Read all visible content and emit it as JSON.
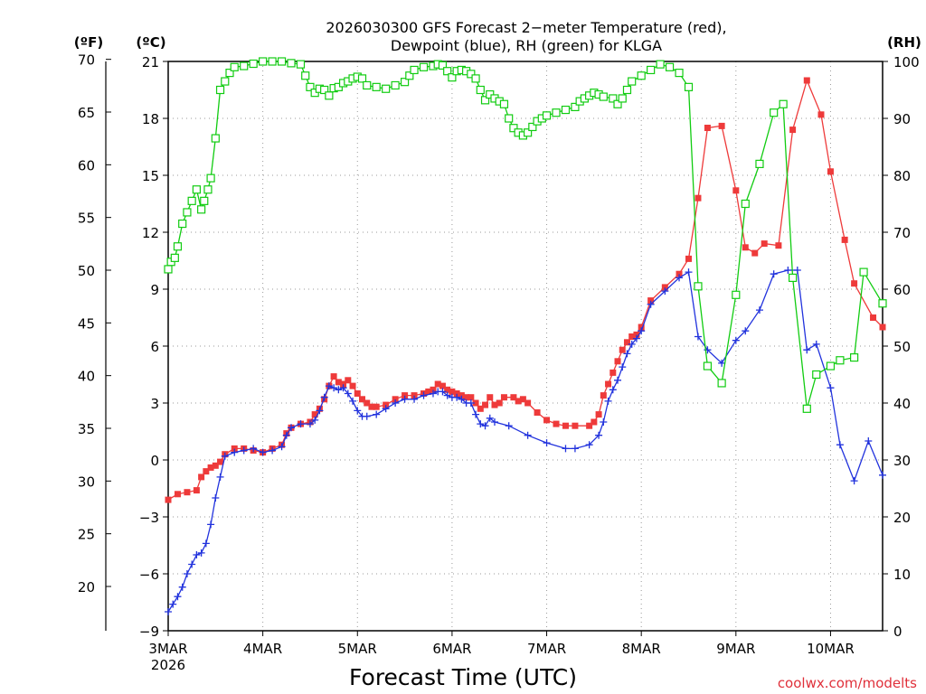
{
  "chart_data": {
    "type": "line",
    "title_line1": "2026030300 GFS Forecast 2−meter Temperature (red),",
    "title_line2": "Dewpoint (blue), RH (green) for KLGA",
    "xlabel": "Forecast Time (UTC)",
    "credit": "coolwx.com/modelts",
    "y_left_outer_unit": "(ºF)",
    "y_left_inner_unit": "(ºC)",
    "y_right_unit": "(RH)",
    "x_range_days": [
      0,
      7.55
    ],
    "yC_range": [
      -9,
      21
    ],
    "yF_range": [
      15.8,
      69.8
    ],
    "rh_range": [
      0,
      100
    ],
    "f_ticks": [
      "70",
      "65",
      "60",
      "55",
      "50",
      "45",
      "40",
      "35",
      "30",
      "25",
      "20"
    ],
    "c_ticks": [
      "21",
      "18",
      "15",
      "12",
      "9",
      "6",
      "3",
      "0",
      "−3",
      "−6",
      "−9"
    ],
    "rh_ticks": [
      "100",
      "90",
      "80",
      "70",
      "60",
      "50",
      "40",
      "30",
      "20",
      "10",
      "0"
    ],
    "x_ticks": [
      {
        "day": 0,
        "label": "3MAR",
        "sublabel": "2026"
      },
      {
        "day": 1,
        "label": "4MAR",
        "sublabel": ""
      },
      {
        "day": 2,
        "label": "5MAR",
        "sublabel": ""
      },
      {
        "day": 3,
        "label": "6MAR",
        "sublabel": ""
      },
      {
        "day": 4,
        "label": "7MAR",
        "sublabel": ""
      },
      {
        "day": 5,
        "label": "8MAR",
        "sublabel": ""
      },
      {
        "day": 6,
        "label": "9MAR",
        "sublabel": ""
      },
      {
        "day": 7,
        "label": "10MAR",
        "sublabel": ""
      }
    ],
    "colors": {
      "temperature": "#ee3a3a",
      "dewpoint": "#2233dd",
      "rh": "#11cc11"
    },
    "series": [
      {
        "name": "Temperature",
        "units": "degC",
        "marker": "square",
        "color": "#ee3a3a",
        "points": [
          [
            0,
            -2.1
          ],
          [
            0.1,
            -1.8
          ],
          [
            0.2,
            -1.7
          ],
          [
            0.3,
            -1.6
          ],
          [
            0.35,
            -0.9
          ],
          [
            0.4,
            -0.6
          ],
          [
            0.45,
            -0.4
          ],
          [
            0.5,
            -0.3
          ],
          [
            0.55,
            -0.1
          ],
          [
            0.6,
            0.3
          ],
          [
            0.7,
            0.6
          ],
          [
            0.8,
            0.6
          ],
          [
            0.9,
            0.5
          ],
          [
            1.0,
            0.4
          ],
          [
            1.1,
            0.6
          ],
          [
            1.2,
            0.8
          ],
          [
            1.25,
            1.4
          ],
          [
            1.3,
            1.7
          ],
          [
            1.4,
            1.9
          ],
          [
            1.5,
            2.0
          ],
          [
            1.55,
            2.4
          ],
          [
            1.6,
            2.7
          ],
          [
            1.65,
            3.2
          ],
          [
            1.7,
            3.9
          ],
          [
            1.75,
            4.4
          ],
          [
            1.8,
            4.1
          ],
          [
            1.85,
            4.0
          ],
          [
            1.9,
            4.2
          ],
          [
            1.95,
            3.9
          ],
          [
            2.0,
            3.5
          ],
          [
            2.05,
            3.2
          ],
          [
            2.1,
            3.0
          ],
          [
            2.15,
            2.8
          ],
          [
            2.2,
            2.8
          ],
          [
            2.3,
            2.9
          ],
          [
            2.4,
            3.2
          ],
          [
            2.5,
            3.4
          ],
          [
            2.6,
            3.4
          ],
          [
            2.7,
            3.5
          ],
          [
            2.75,
            3.6
          ],
          [
            2.8,
            3.7
          ],
          [
            2.85,
            4.0
          ],
          [
            2.9,
            3.9
          ],
          [
            2.95,
            3.7
          ],
          [
            3.0,
            3.6
          ],
          [
            3.05,
            3.5
          ],
          [
            3.1,
            3.4
          ],
          [
            3.15,
            3.3
          ],
          [
            3.2,
            3.3
          ],
          [
            3.25,
            3.0
          ],
          [
            3.3,
            2.7
          ],
          [
            3.35,
            2.9
          ],
          [
            3.4,
            3.3
          ],
          [
            3.45,
            2.9
          ],
          [
            3.5,
            3.0
          ],
          [
            3.55,
            3.3
          ],
          [
            3.65,
            3.3
          ],
          [
            3.7,
            3.1
          ],
          [
            3.75,
            3.2
          ],
          [
            3.8,
            3.0
          ],
          [
            3.9,
            2.5
          ],
          [
            4.0,
            2.1
          ],
          [
            4.1,
            1.9
          ],
          [
            4.2,
            1.8
          ],
          [
            4.3,
            1.8
          ],
          [
            4.45,
            1.8
          ],
          [
            4.5,
            2.0
          ],
          [
            4.55,
            2.4
          ],
          [
            4.6,
            3.4
          ],
          [
            4.65,
            4.0
          ],
          [
            4.7,
            4.6
          ],
          [
            4.75,
            5.2
          ],
          [
            4.8,
            5.8
          ],
          [
            4.85,
            6.2
          ],
          [
            4.9,
            6.5
          ],
          [
            4.95,
            6.6
          ],
          [
            5.0,
            7.0
          ],
          [
            5.1,
            8.4
          ],
          [
            5.25,
            9.1
          ],
          [
            5.4,
            9.8
          ],
          [
            5.5,
            10.6
          ],
          [
            5.6,
            13.8
          ],
          [
            5.7,
            17.5
          ],
          [
            5.85,
            17.6
          ],
          [
            6.0,
            14.2
          ],
          [
            6.1,
            11.2
          ],
          [
            6.2,
            10.9
          ],
          [
            6.3,
            11.4
          ],
          [
            6.45,
            11.3
          ],
          [
            6.6,
            17.4
          ],
          [
            6.75,
            20.0
          ],
          [
            6.9,
            18.2
          ],
          [
            7.0,
            15.2
          ],
          [
            7.15,
            11.6
          ],
          [
            7.25,
            9.3
          ],
          [
            7.45,
            7.5
          ],
          [
            7.55,
            7.0
          ]
        ]
      },
      {
        "name": "Dewpoint",
        "units": "degC",
        "marker": "plus",
        "color": "#2233dd",
        "points": [
          [
            0,
            -8.0
          ],
          [
            0.05,
            -7.6
          ],
          [
            0.1,
            -7.2
          ],
          [
            0.15,
            -6.7
          ],
          [
            0.2,
            -6.0
          ],
          [
            0.25,
            -5.5
          ],
          [
            0.3,
            -5.0
          ],
          [
            0.35,
            -4.9
          ],
          [
            0.4,
            -4.4
          ],
          [
            0.45,
            -3.4
          ],
          [
            0.5,
            -2.0
          ],
          [
            0.55,
            -0.9
          ],
          [
            0.6,
            0.2
          ],
          [
            0.7,
            0.4
          ],
          [
            0.8,
            0.5
          ],
          [
            0.9,
            0.6
          ],
          [
            1.0,
            0.4
          ],
          [
            1.1,
            0.5
          ],
          [
            1.2,
            0.7
          ],
          [
            1.25,
            1.3
          ],
          [
            1.3,
            1.7
          ],
          [
            1.4,
            1.9
          ],
          [
            1.5,
            1.9
          ],
          [
            1.55,
            2.1
          ],
          [
            1.6,
            2.6
          ],
          [
            1.65,
            3.3
          ],
          [
            1.7,
            3.9
          ],
          [
            1.75,
            3.8
          ],
          [
            1.8,
            3.7
          ],
          [
            1.85,
            3.8
          ],
          [
            1.9,
            3.5
          ],
          [
            1.95,
            3.1
          ],
          [
            2.0,
            2.6
          ],
          [
            2.05,
            2.3
          ],
          [
            2.1,
            2.3
          ],
          [
            2.2,
            2.4
          ],
          [
            2.3,
            2.7
          ],
          [
            2.4,
            3.0
          ],
          [
            2.5,
            3.2
          ],
          [
            2.6,
            3.2
          ],
          [
            2.7,
            3.4
          ],
          [
            2.8,
            3.5
          ],
          [
            2.85,
            3.6
          ],
          [
            2.9,
            3.6
          ],
          [
            2.95,
            3.4
          ],
          [
            3.0,
            3.3
          ],
          [
            3.05,
            3.3
          ],
          [
            3.1,
            3.2
          ],
          [
            3.15,
            3.0
          ],
          [
            3.2,
            3.0
          ],
          [
            3.25,
            2.4
          ],
          [
            3.3,
            1.9
          ],
          [
            3.35,
            1.8
          ],
          [
            3.4,
            2.2
          ],
          [
            3.45,
            2.0
          ],
          [
            3.6,
            1.8
          ],
          [
            3.8,
            1.3
          ],
          [
            4.0,
            0.9
          ],
          [
            4.2,
            0.6
          ],
          [
            4.3,
            0.6
          ],
          [
            4.45,
            0.8
          ],
          [
            4.55,
            1.3
          ],
          [
            4.6,
            2.0
          ],
          [
            4.65,
            3.1
          ],
          [
            4.7,
            3.7
          ],
          [
            4.75,
            4.2
          ],
          [
            4.8,
            4.9
          ],
          [
            4.85,
            5.6
          ],
          [
            4.9,
            6.1
          ],
          [
            4.95,
            6.4
          ],
          [
            5.0,
            6.8
          ],
          [
            5.1,
            8.2
          ],
          [
            5.25,
            8.9
          ],
          [
            5.4,
            9.6
          ],
          [
            5.5,
            9.9
          ],
          [
            5.6,
            6.5
          ],
          [
            5.7,
            5.8
          ],
          [
            5.85,
            5.1
          ],
          [
            6.0,
            6.3
          ],
          [
            6.1,
            6.8
          ],
          [
            6.25,
            7.9
          ],
          [
            6.4,
            9.8
          ],
          [
            6.55,
            10.0
          ],
          [
            6.65,
            10.0
          ],
          [
            6.75,
            5.8
          ],
          [
            6.85,
            6.1
          ],
          [
            7.0,
            3.8
          ],
          [
            7.1,
            0.8
          ],
          [
            7.25,
            -1.1
          ],
          [
            7.4,
            1.0
          ],
          [
            7.55,
            -0.8
          ]
        ]
      },
      {
        "name": "RH",
        "units": "percent",
        "marker": "open-square",
        "color": "#11cc11",
        "points": [
          [
            0,
            63.5
          ],
          [
            0.03,
            64.8
          ],
          [
            0.07,
            65.5
          ],
          [
            0.1,
            67.5
          ],
          [
            0.15,
            71.5
          ],
          [
            0.2,
            73.5
          ],
          [
            0.25,
            75.5
          ],
          [
            0.3,
            77.5
          ],
          [
            0.35,
            74.0
          ],
          [
            0.38,
            75.5
          ],
          [
            0.42,
            77.5
          ],
          [
            0.45,
            79.5
          ],
          [
            0.5,
            86.5
          ],
          [
            0.55,
            95.0
          ],
          [
            0.6,
            96.5
          ],
          [
            0.65,
            98.0
          ],
          [
            0.7,
            99.0
          ],
          [
            0.8,
            99.2
          ],
          [
            0.9,
            99.6
          ],
          [
            1.0,
            100.0
          ],
          [
            1.1,
            100.0
          ],
          [
            1.2,
            100.0
          ],
          [
            1.3,
            99.7
          ],
          [
            1.4,
            99.5
          ],
          [
            1.45,
            97.5
          ],
          [
            1.5,
            95.5
          ],
          [
            1.55,
            94.5
          ],
          [
            1.6,
            95.2
          ],
          [
            1.65,
            95.0
          ],
          [
            1.7,
            94.0
          ],
          [
            1.75,
            95.3
          ],
          [
            1.8,
            95.5
          ],
          [
            1.85,
            96.2
          ],
          [
            1.9,
            96.5
          ],
          [
            1.95,
            97.0
          ],
          [
            2.0,
            97.3
          ],
          [
            2.05,
            97.0
          ],
          [
            2.1,
            95.8
          ],
          [
            2.2,
            95.5
          ],
          [
            2.3,
            95.2
          ],
          [
            2.4,
            95.8
          ],
          [
            2.5,
            96.4
          ],
          [
            2.55,
            97.5
          ],
          [
            2.6,
            98.5
          ],
          [
            2.7,
            99.0
          ],
          [
            2.8,
            99.2
          ],
          [
            2.85,
            99.5
          ],
          [
            2.9,
            99.3
          ],
          [
            2.95,
            98.3
          ],
          [
            3.0,
            97.2
          ],
          [
            3.05,
            98.3
          ],
          [
            3.1,
            98.5
          ],
          [
            3.15,
            98.3
          ],
          [
            3.2,
            97.8
          ],
          [
            3.25,
            97.0
          ],
          [
            3.3,
            95.0
          ],
          [
            3.35,
            93.2
          ],
          [
            3.4,
            94.2
          ],
          [
            3.45,
            93.5
          ],
          [
            3.5,
            93.0
          ],
          [
            3.55,
            92.5
          ],
          [
            3.6,
            90.0
          ],
          [
            3.65,
            88.3
          ],
          [
            3.7,
            87.5
          ],
          [
            3.75,
            87.0
          ],
          [
            3.8,
            87.5
          ],
          [
            3.85,
            88.5
          ],
          [
            3.9,
            89.5
          ],
          [
            3.95,
            90.0
          ],
          [
            4.0,
            90.5
          ],
          [
            4.1,
            91.0
          ],
          [
            4.2,
            91.5
          ],
          [
            4.3,
            92.0
          ],
          [
            4.35,
            93.0
          ],
          [
            4.4,
            93.5
          ],
          [
            4.45,
            94.0
          ],
          [
            4.5,
            94.5
          ],
          [
            4.55,
            94.2
          ],
          [
            4.6,
            93.8
          ],
          [
            4.7,
            93.5
          ],
          [
            4.75,
            92.5
          ],
          [
            4.8,
            93.5
          ],
          [
            4.85,
            95.0
          ],
          [
            4.9,
            96.5
          ],
          [
            5.0,
            97.5
          ],
          [
            5.1,
            98.5
          ],
          [
            5.2,
            99.5
          ],
          [
            5.3,
            99.0
          ],
          [
            5.4,
            98.0
          ],
          [
            5.5,
            95.5
          ],
          [
            5.6,
            60.5
          ],
          [
            5.7,
            46.5
          ],
          [
            5.85,
            43.5
          ],
          [
            6.0,
            59.0
          ],
          [
            6.1,
            75.0
          ],
          [
            6.25,
            82.0
          ],
          [
            6.4,
            91.0
          ],
          [
            6.5,
            92.5
          ],
          [
            6.6,
            62.0
          ],
          [
            6.75,
            39.0
          ],
          [
            6.85,
            45.0
          ],
          [
            7.0,
            46.5
          ],
          [
            7.1,
            47.5
          ],
          [
            7.25,
            48.0
          ],
          [
            7.35,
            63.0
          ],
          [
            7.55,
            57.5
          ]
        ]
      }
    ]
  }
}
